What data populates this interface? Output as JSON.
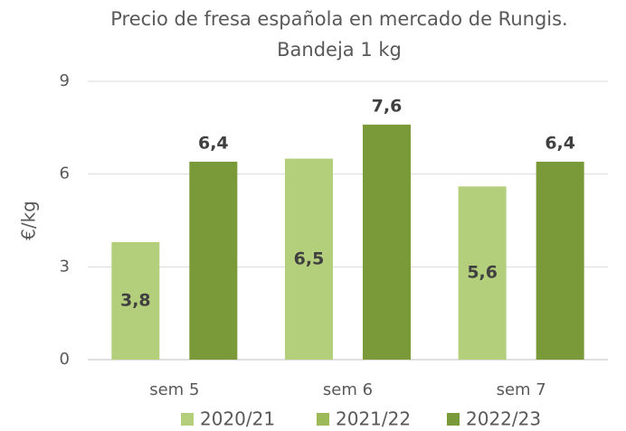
{
  "chart_data": {
    "type": "bar",
    "title": [
      "Precio de fresa española en mercado de Rungis.",
      "Bandeja 1 kg"
    ],
    "y_label": "€/kg",
    "categories": [
      "sem 5",
      "sem 6",
      "sem 7"
    ],
    "series": [
      {
        "name": "2020/21",
        "color": "#b3cf7c",
        "values": [
          3.8,
          6.5,
          5.6
        ],
        "value_labels": [
          "3,8",
          "6,5",
          "5,6"
        ]
      },
      {
        "name": "2021/22",
        "color": "#9cbb58",
        "values": [
          null,
          null,
          null
        ]
      },
      {
        "name": "2022/23",
        "color": "#7a9a3a",
        "values": [
          6.4,
          7.6,
          6.4
        ],
        "value_labels": [
          "6,4",
          "7,6",
          "6,4"
        ]
      }
    ],
    "ylim": [
      0,
      9
    ],
    "yticks": [
      0,
      3,
      6,
      9
    ],
    "grid": true
  }
}
